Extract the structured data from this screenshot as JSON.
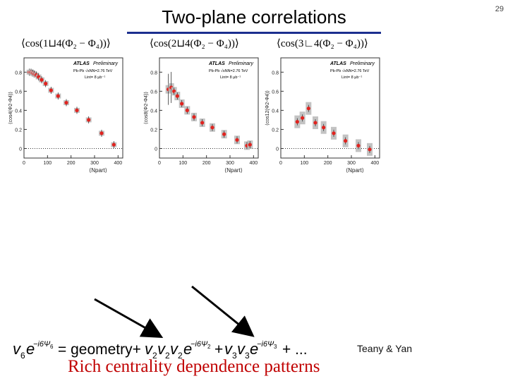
{
  "slide_number": "29",
  "title": "Two-plane correlations",
  "panel_headers": [
    "⟨cos(1⊔4(Φ₂ − Φ₄))⟩",
    "⟨cos(2⊔4(Φ₂ − Φ₄))⟩",
    "⟨cos(3∟4(Φ₂ − Φ₄))⟩"
  ],
  "panel_legend": {
    "experiment": "ATLAS",
    "status": "Preliminary",
    "system": "Pb-Pb √sNN=2.76 TeV",
    "lumi": "Lint= 8 μb⁻¹"
  },
  "x_axis_label": "⟨Npart⟩",
  "colors": {
    "marker": "#e0231f",
    "sys_box": "#b8b8b8",
    "arrow": "#000000",
    "caption": "#c00000",
    "title_rule": "#1c2f8f"
  },
  "chart_data": [
    {
      "type": "scatter",
      "ylabel": "⟨cos4(Φ2-Φ4)⟩",
      "xlabel": "⟨Npart⟩",
      "x_ticks": [
        0,
        100,
        200,
        300,
        400
      ],
      "y_ticks": [
        0,
        0.2,
        0.4,
        0.6,
        0.8
      ],
      "xlim": [
        0,
        420
      ],
      "ylim": [
        -0.1,
        0.95
      ],
      "x": [
        23,
        30,
        37,
        44,
        52,
        62,
        75,
        92,
        115,
        145,
        180,
        225,
        275,
        330,
        382
      ],
      "y": [
        0.8,
        0.8,
        0.79,
        0.78,
        0.77,
        0.75,
        0.72,
        0.68,
        0.61,
        0.55,
        0.48,
        0.4,
        0.3,
        0.16,
        0.04
      ]
    },
    {
      "type": "scatter",
      "ylabel": "⟨cos8(Φ2-Φ4)⟩",
      "xlabel": "⟨Npart⟩",
      "x_ticks": [
        0,
        100,
        200,
        300,
        400
      ],
      "y_ticks": [
        0,
        0.2,
        0.4,
        0.6,
        0.8
      ],
      "xlim": [
        0,
        420
      ],
      "ylim": [
        -0.1,
        0.95
      ],
      "x": [
        38,
        50,
        62,
        76,
        95,
        118,
        147,
        182,
        225,
        275,
        330,
        372,
        385
      ],
      "y": [
        0.62,
        0.64,
        0.6,
        0.55,
        0.47,
        0.4,
        0.33,
        0.27,
        0.22,
        0.15,
        0.09,
        0.03,
        0.04
      ]
    },
    {
      "type": "scatter",
      "ylabel": "⟨cos12(Φ2-Φ4)⟩",
      "xlabel": "⟨Npart⟩",
      "x_ticks": [
        0,
        100,
        200,
        300,
        400
      ],
      "y_ticks": [
        0,
        0.2,
        0.4,
        0.6,
        0.8
      ],
      "xlim": [
        0,
        420
      ],
      "ylim": [
        -0.1,
        0.95
      ],
      "x": [
        70,
        92,
        118,
        147,
        182,
        225,
        275,
        330,
        378
      ],
      "y": [
        0.28,
        0.32,
        0.42,
        0.27,
        0.22,
        0.16,
        0.08,
        0.03,
        -0.01
      ]
    }
  ],
  "formula": {
    "lhs": "v₆e^{−i6Ψ₆} = geometry + v₂v₂v₂e^{−i6Ψ₂} + v₃v₃e^{−i6Ψ₃} + ..."
  },
  "credit": "Teany & Yan",
  "caption": "Rich centrality dependence patterns"
}
